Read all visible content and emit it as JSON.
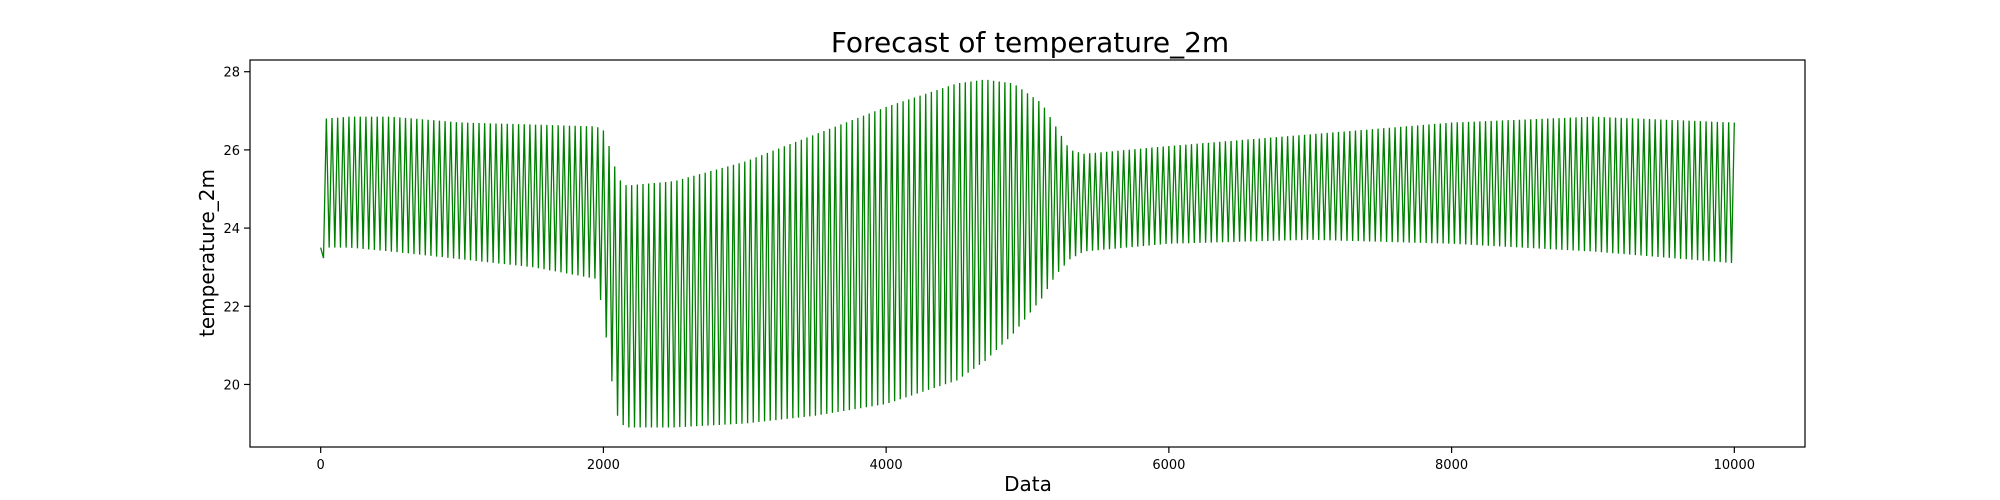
{
  "chart_data": {
    "type": "line",
    "title": "Forecast of temperature_2m",
    "xlabel": "Data",
    "ylabel": "temperature_2m",
    "xlim": [
      -500,
      10500
    ],
    "ylim": [
      18.4,
      28.3
    ],
    "xticks": [
      0,
      2000,
      4000,
      6000,
      8000,
      10000
    ],
    "yticks": [
      20,
      22,
      24,
      26,
      28
    ],
    "grid": false,
    "legend": "none",
    "series": [
      {
        "color": "#008000",
        "x_range": [
          0,
          10000
        ],
        "period": 40,
        "envelope": {
          "x": [
            0,
            30,
            200,
            500,
            1000,
            1500,
            1950,
            2000,
            2050,
            2100,
            2150,
            2200,
            2500,
            3000,
            3500,
            4000,
            4500,
            4700,
            4900,
            5100,
            5200,
            5300,
            5400,
            6000,
            7000,
            8000,
            9000,
            10000
          ],
          "max": [
            23.5,
            26.8,
            26.85,
            26.85,
            26.7,
            26.65,
            26.6,
            26.5,
            26.0,
            25.3,
            25.1,
            25.1,
            25.2,
            25.7,
            26.4,
            27.1,
            27.7,
            27.8,
            27.7,
            27.2,
            26.6,
            26.0,
            25.9,
            26.1,
            26.4,
            26.7,
            26.85,
            26.7
          ],
          "min": [
            22.7,
            23.5,
            23.5,
            23.4,
            23.2,
            23.0,
            22.7,
            21.8,
            20.3,
            19.2,
            18.9,
            18.9,
            18.9,
            19.0,
            19.2,
            19.5,
            20.1,
            20.6,
            21.3,
            22.2,
            22.8,
            23.2,
            23.4,
            23.6,
            23.7,
            23.6,
            23.4,
            23.1
          ]
        }
      }
    ]
  }
}
